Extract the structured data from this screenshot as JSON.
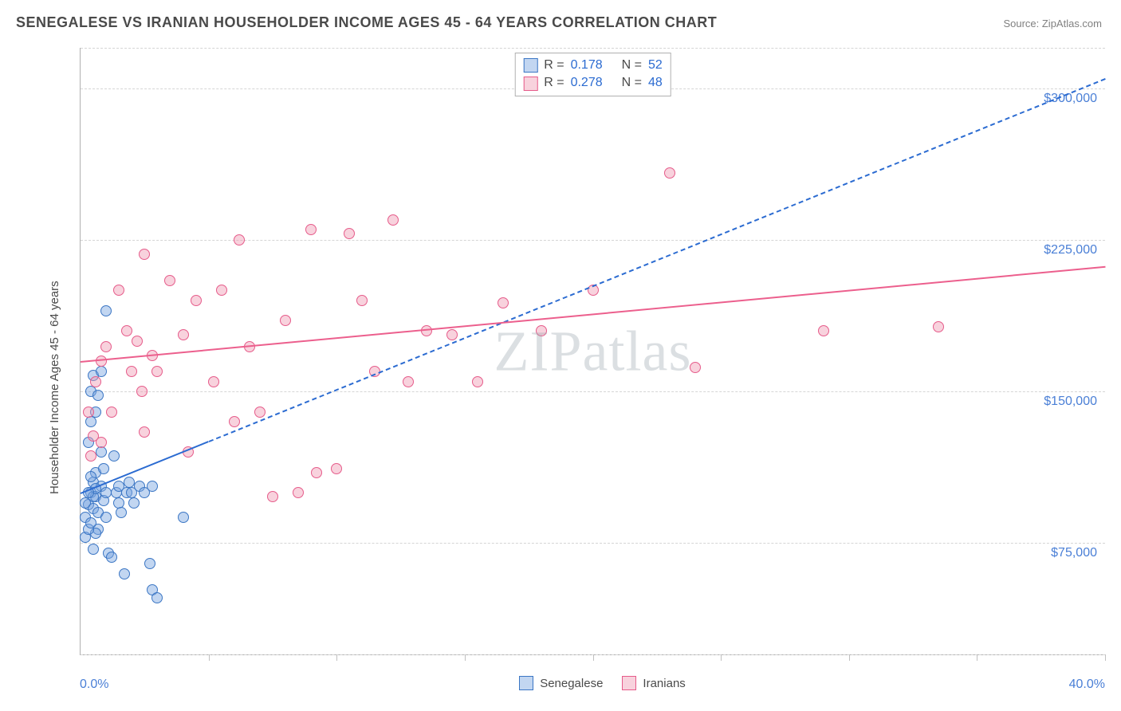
{
  "title": "SENEGALESE VS IRANIAN HOUSEHOLDER INCOME AGES 45 - 64 YEARS CORRELATION CHART",
  "source_prefix": "Source: ",
  "source_name": "ZipAtlas.com",
  "watermark": "ZIPatlas",
  "yaxis_label": "Householder Income Ages 45 - 64 years",
  "chart": {
    "type": "scatter",
    "background_color": "#ffffff",
    "grid_color": "#d5d5d5",
    "axis_color": "#b0b0b0",
    "text_color": "#4a4a4a",
    "value_color": "#4a7fd6",
    "xlim": [
      0,
      40
    ],
    "ylim": [
      20000,
      320000
    ],
    "xtick_positions": [
      0,
      5,
      10,
      15,
      20,
      25,
      30,
      35,
      40
    ],
    "xlim_labels": [
      "0.0%",
      "40.0%"
    ],
    "ytick_positions": [
      75000,
      150000,
      225000,
      300000
    ],
    "ytick_labels": [
      "$75,000",
      "$150,000",
      "$225,000",
      "$300,000"
    ],
    "grid_rows_at": [
      20000,
      75000,
      150000,
      225000,
      300000,
      320000
    ],
    "marker_radius": 7,
    "marker_border_width": 1,
    "series": [
      {
        "name": "Senegalese",
        "fill": "rgba(120,165,225,0.45)",
        "stroke": "#3b76c4",
        "r_label": "R  =",
        "r_value": "0.178",
        "n_label": "N  =",
        "n_value": "52",
        "trend": {
          "x1": 0,
          "y1": 100000,
          "x2": 40,
          "y2": 305000,
          "solid_until_x": 5,
          "width": 2,
          "color": "#2b6bd1"
        },
        "points": [
          [
            0.2,
            88000
          ],
          [
            0.3,
            94000
          ],
          [
            0.4,
            100000
          ],
          [
            0.5,
            105000
          ],
          [
            0.5,
            92000
          ],
          [
            0.6,
            110000
          ],
          [
            0.6,
            98000
          ],
          [
            0.7,
            82000
          ],
          [
            0.7,
            90000
          ],
          [
            0.8,
            120000
          ],
          [
            0.8,
            103000
          ],
          [
            0.9,
            96000
          ],
          [
            0.9,
            112000
          ],
          [
            1.0,
            100000
          ],
          [
            1.0,
            88000
          ],
          [
            1.1,
            70000
          ],
          [
            1.2,
            68000
          ],
          [
            1.3,
            118000
          ],
          [
            1.4,
            100000
          ],
          [
            1.5,
            103000
          ],
          [
            1.5,
            95000
          ],
          [
            1.6,
            90000
          ],
          [
            1.7,
            60000
          ],
          [
            1.8,
            100000
          ],
          [
            1.9,
            105000
          ],
          [
            2.0,
            100000
          ],
          [
            2.1,
            95000
          ],
          [
            2.3,
            103000
          ],
          [
            2.5,
            100000
          ],
          [
            2.7,
            65000
          ],
          [
            2.8,
            103000
          ],
          [
            2.8,
            52000
          ],
          [
            3.0,
            48000
          ],
          [
            0.4,
            150000
          ],
          [
            0.5,
            158000
          ],
          [
            0.6,
            140000
          ],
          [
            0.7,
            148000
          ],
          [
            0.8,
            160000
          ],
          [
            0.5,
            72000
          ],
          [
            0.6,
            80000
          ],
          [
            0.3,
            125000
          ],
          [
            0.4,
            135000
          ],
          [
            0.2,
            78000
          ],
          [
            0.3,
            82000
          ],
          [
            0.4,
            85000
          ],
          [
            0.5,
            98000
          ],
          [
            0.6,
            102000
          ],
          [
            0.2,
            95000
          ],
          [
            0.3,
            100000
          ],
          [
            0.4,
            108000
          ],
          [
            4.0,
            88000
          ],
          [
            1.0,
            190000
          ]
        ]
      },
      {
        "name": "Iranians",
        "fill": "rgba(240,155,180,0.45)",
        "stroke": "#e65b8a",
        "r_label": "R  =",
        "r_value": "0.278",
        "n_label": "N  =",
        "n_value": "48",
        "trend": {
          "x1": 0,
          "y1": 165000,
          "x2": 40,
          "y2": 212000,
          "solid_until_x": 40,
          "width": 2,
          "color": "#ec5f8d"
        },
        "points": [
          [
            0.5,
            128000
          ],
          [
            0.6,
            155000
          ],
          [
            0.8,
            165000
          ],
          [
            1.0,
            172000
          ],
          [
            1.2,
            140000
          ],
          [
            1.5,
            200000
          ],
          [
            1.8,
            180000
          ],
          [
            2.0,
            160000
          ],
          [
            2.2,
            175000
          ],
          [
            2.4,
            150000
          ],
          [
            2.5,
            130000
          ],
          [
            2.8,
            168000
          ],
          [
            3.5,
            205000
          ],
          [
            4.0,
            178000
          ],
          [
            4.2,
            120000
          ],
          [
            4.5,
            195000
          ],
          [
            5.2,
            155000
          ],
          [
            5.5,
            200000
          ],
          [
            6.0,
            135000
          ],
          [
            6.2,
            225000
          ],
          [
            6.6,
            172000
          ],
          [
            7.5,
            98000
          ],
          [
            8.0,
            185000
          ],
          [
            8.5,
            100000
          ],
          [
            9.0,
            230000
          ],
          [
            9.2,
            110000
          ],
          [
            10.0,
            112000
          ],
          [
            10.5,
            228000
          ],
          [
            11.0,
            195000
          ],
          [
            11.5,
            160000
          ],
          [
            12.2,
            235000
          ],
          [
            12.8,
            155000
          ],
          [
            13.5,
            180000
          ],
          [
            14.5,
            178000
          ],
          [
            15.5,
            155000
          ],
          [
            16.5,
            194000
          ],
          [
            18.0,
            180000
          ],
          [
            20.0,
            200000
          ],
          [
            23.0,
            258000
          ],
          [
            24.0,
            162000
          ],
          [
            29.0,
            180000
          ],
          [
            33.5,
            182000
          ],
          [
            0.3,
            140000
          ],
          [
            0.4,
            118000
          ],
          [
            0.8,
            125000
          ],
          [
            2.5,
            218000
          ],
          [
            3.0,
            160000
          ],
          [
            7.0,
            140000
          ]
        ]
      }
    ]
  }
}
